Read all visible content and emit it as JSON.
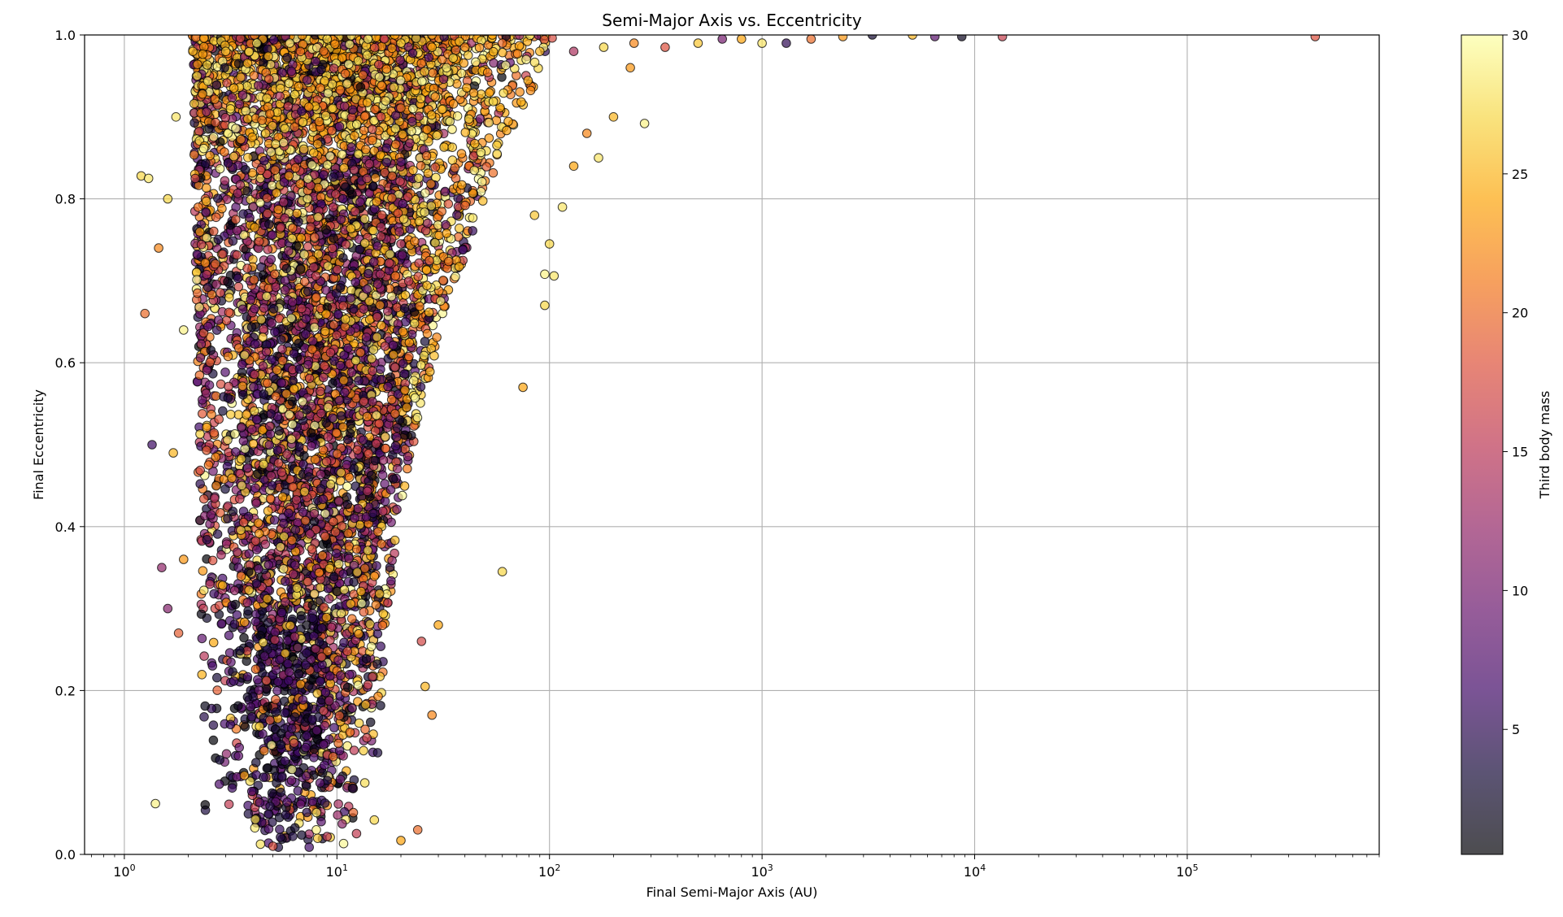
{
  "chart_data": {
    "type": "scatter",
    "title": "Semi-Major Axis vs. Eccentricity",
    "xlabel": "Final Semi-Major Axis (AU)",
    "ylabel": "Final Eccentricity",
    "xscale": "log",
    "xlim": [
      0.65,
      800000
    ],
    "ylim": [
      0,
      1
    ],
    "x_ticks": [
      {
        "value": 1,
        "base": "10",
        "exp": "0"
      },
      {
        "value": 10,
        "base": "10",
        "exp": "1"
      },
      {
        "value": 100,
        "base": "10",
        "exp": "2"
      },
      {
        "value": 1000,
        "base": "10",
        "exp": "3"
      },
      {
        "value": 10000,
        "base": "10",
        "exp": "4"
      },
      {
        "value": 100000,
        "base": "10",
        "exp": "5"
      }
    ],
    "y_ticks": [
      {
        "value": 0.0,
        "label": "0.0"
      },
      {
        "value": 0.2,
        "label": "0.2"
      },
      {
        "value": 0.4,
        "label": "0.4"
      },
      {
        "value": 0.6,
        "label": "0.6"
      },
      {
        "value": 0.8,
        "label": "0.8"
      },
      {
        "value": 1.0,
        "label": "1.0"
      }
    ],
    "grid": true,
    "colorbar": {
      "label": "Third body mass",
      "colormap": "inferno",
      "range": [
        0.5,
        30
      ],
      "ticks": [
        {
          "value": 5,
          "label": "5"
        },
        {
          "value": 10,
          "label": "10"
        },
        {
          "value": 15,
          "label": "15"
        },
        {
          "value": 20,
          "label": "20"
        },
        {
          "value": 25,
          "label": "25"
        },
        {
          "value": 30,
          "label": "30"
        }
      ]
    },
    "marker": {
      "edge_color": "#000000",
      "alpha": 0.7
    },
    "points": [
      {
        "x": 1.2,
        "y": 0.828,
        "c": 27
      },
      {
        "x": 1.3,
        "y": 0.825,
        "c": 28
      },
      {
        "x": 1.4,
        "y": 0.062,
        "c": 29
      },
      {
        "x": 1.35,
        "y": 0.5,
        "c": 6
      },
      {
        "x": 1.25,
        "y": 0.66,
        "c": 20
      },
      {
        "x": 1.5,
        "y": 0.35,
        "c": 12
      },
      {
        "x": 1.45,
        "y": 0.74,
        "c": 22
      },
      {
        "x": 1.6,
        "y": 0.3,
        "c": 11
      },
      {
        "x": 1.7,
        "y": 0.49,
        "c": 25
      },
      {
        "x": 1.8,
        "y": 0.27,
        "c": 19
      },
      {
        "x": 1.9,
        "y": 0.36,
        "c": 23
      },
      {
        "x": 1.6,
        "y": 0.8,
        "c": 27
      },
      {
        "x": 1.75,
        "y": 0.9,
        "c": 28
      },
      {
        "x": 1.9,
        "y": 0.64,
        "c": 29
      },
      {
        "x": 2.1,
        "y": 0.98,
        "c": 25
      },
      {
        "x": 2.2,
        "y": 0.95,
        "c": 27
      },
      {
        "x": 3.0,
        "y": 0.98,
        "c": 26
      },
      {
        "x": 4.2,
        "y": 0.99,
        "c": 28
      },
      {
        "x": 6,
        "y": 0.99,
        "c": 29
      },
      {
        "x": 9,
        "y": 0.995,
        "c": 27
      },
      {
        "x": 14,
        "y": 0.995,
        "c": 28
      },
      {
        "x": 20,
        "y": 0.99,
        "c": 26
      },
      {
        "x": 28,
        "y": 0.985,
        "c": 24
      },
      {
        "x": 40,
        "y": 0.985,
        "c": 22
      },
      {
        "x": 60,
        "y": 0.99,
        "c": 20
      },
      {
        "x": 90,
        "y": 0.98,
        "c": 25
      },
      {
        "x": 130,
        "y": 0.98,
        "c": 14
      },
      {
        "x": 180,
        "y": 0.985,
        "c": 27
      },
      {
        "x": 250,
        "y": 0.99,
        "c": 22
      },
      {
        "x": 350,
        "y": 0.985,
        "c": 18
      },
      {
        "x": 500,
        "y": 0.99,
        "c": 26
      },
      {
        "x": 650,
        "y": 0.995,
        "c": 10
      },
      {
        "x": 800,
        "y": 0.995,
        "c": 24
      },
      {
        "x": 1000,
        "y": 0.99,
        "c": 28
      },
      {
        "x": 1300,
        "y": 0.99,
        "c": 5
      },
      {
        "x": 1700,
        "y": 0.995,
        "c": 20
      },
      {
        "x": 2400,
        "y": 0.998,
        "c": 23
      },
      {
        "x": 3300,
        "y": 1.0,
        "c": 3
      },
      {
        "x": 5100,
        "y": 1.0,
        "c": 25
      },
      {
        "x": 6500,
        "y": 0.998,
        "c": 8
      },
      {
        "x": 8700,
        "y": 0.998,
        "c": 2
      },
      {
        "x": 13500,
        "y": 0.998,
        "c": 16
      },
      {
        "x": 400000,
        "y": 0.998,
        "c": 18
      },
      {
        "x": 95,
        "y": 0.708,
        "c": 29
      },
      {
        "x": 105,
        "y": 0.706,
        "c": 28
      },
      {
        "x": 100,
        "y": 0.745,
        "c": 27
      },
      {
        "x": 115,
        "y": 0.79,
        "c": 28
      },
      {
        "x": 85,
        "y": 0.78,
        "c": 26
      },
      {
        "x": 95,
        "y": 0.67,
        "c": 27
      },
      {
        "x": 75,
        "y": 0.57,
        "c": 24
      },
      {
        "x": 60,
        "y": 0.345,
        "c": 27
      },
      {
        "x": 170,
        "y": 0.85,
        "c": 28
      },
      {
        "x": 200,
        "y": 0.9,
        "c": 25
      },
      {
        "x": 280,
        "y": 0.892,
        "c": 29
      },
      {
        "x": 150,
        "y": 0.88,
        "c": 22
      },
      {
        "x": 130,
        "y": 0.84,
        "c": 24
      },
      {
        "x": 240,
        "y": 0.96,
        "c": 23
      },
      {
        "x": 20,
        "y": 0.017,
        "c": 24
      },
      {
        "x": 24,
        "y": 0.03,
        "c": 20
      },
      {
        "x": 5,
        "y": 0.01,
        "c": 18
      },
      {
        "x": 6.2,
        "y": 0.022,
        "c": 4
      },
      {
        "x": 8,
        "y": 0.03,
        "c": 29
      },
      {
        "x": 15,
        "y": 0.042,
        "c": 27
      },
      {
        "x": 26,
        "y": 0.205,
        "c": 25
      },
      {
        "x": 28,
        "y": 0.17,
        "c": 22
      },
      {
        "x": 25,
        "y": 0.26,
        "c": 17
      },
      {
        "x": 30,
        "y": 0.28,
        "c": 24
      }
    ],
    "cluster_seed": 20240601
  }
}
